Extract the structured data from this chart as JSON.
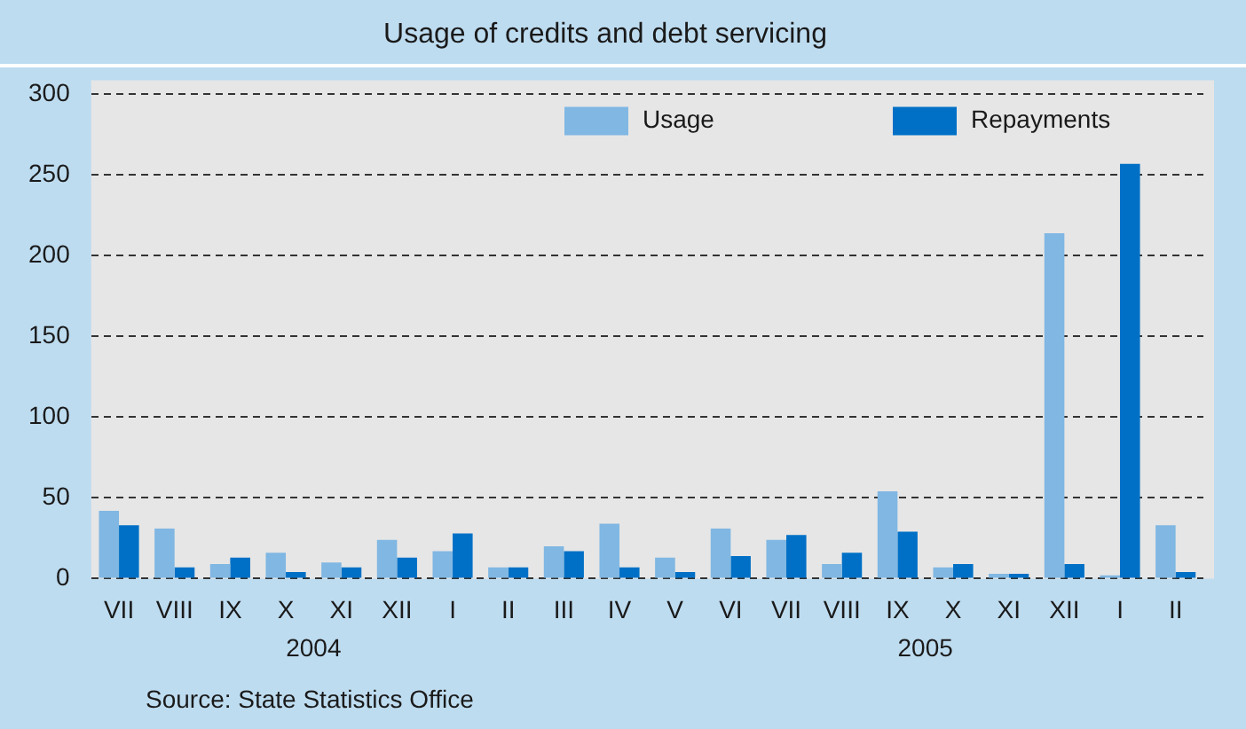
{
  "chart_data": {
    "type": "bar",
    "title": "Usage of credits and debt servicing",
    "categories": [
      "VII",
      "VIII",
      "IX",
      "X",
      "XI",
      "XII",
      "I",
      "II",
      "III",
      "IV",
      "V",
      "VI",
      "VII",
      "VIII",
      "IX",
      "X",
      "XI",
      "XII",
      "I",
      "II"
    ],
    "series": [
      {
        "name": "Usage",
        "color": "#80b7e3",
        "values": [
          42,
          31,
          9,
          16,
          10,
          24,
          17,
          7,
          20,
          34,
          13,
          31,
          24,
          9,
          54,
          7,
          3,
          214,
          2,
          33
        ]
      },
      {
        "name": "Repayments",
        "color": "#0070c6",
        "values": [
          33,
          7,
          13,
          4,
          7,
          13,
          28,
          7,
          17,
          7,
          4,
          14,
          27,
          16,
          29,
          9,
          3,
          9,
          257,
          4
        ]
      }
    ],
    "ylim": [
      0,
      300
    ],
    "yticks": [
      0,
      50,
      100,
      150,
      200,
      250,
      300
    ],
    "grid": "y",
    "legend": "top right",
    "annotations": [
      "2004",
      "2005",
      "Source: State Statistics Office"
    ]
  }
}
